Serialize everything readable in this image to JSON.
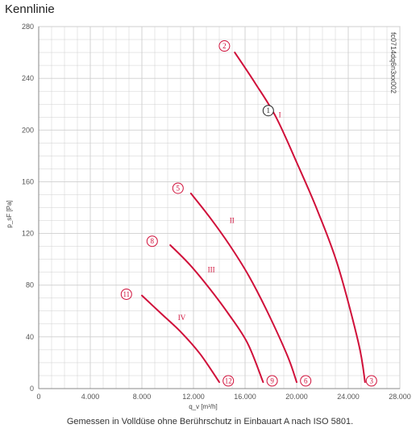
{
  "title": "Kennlinie",
  "caption": "Gemessen in Volldüse ohne Berührschutz in Einbauart A nach ISO 5801.",
  "code": "fc0714dq6n3xx002",
  "colors": {
    "curve": "#d0103a",
    "grid": "#cfcfcf",
    "marker": "#d0103a",
    "op_marker": "#222222"
  },
  "chart_data": {
    "type": "line",
    "xlabel": "q_v [m³/h]",
    "ylabel": "p_sF [Pa]",
    "xlim": [
      0,
      28000
    ],
    "ylim": [
      0,
      280
    ],
    "xticks": [
      "0",
      "4.000",
      "8.000",
      "12.000",
      "16.000",
      "20.000",
      "24.000",
      "28.000"
    ],
    "yticks": [
      "0",
      "40",
      "80",
      "120",
      "160",
      "200",
      "240",
      "280"
    ],
    "grid": true,
    "series": [
      {
        "name": "I",
        "x": [
          15200,
          16800,
          18400,
          20000,
          21600,
          23200,
          24800,
          25300
        ],
        "y": [
          260,
          236,
          210,
          175,
          138,
          95,
          35,
          5
        ]
      },
      {
        "name": "II",
        "x": [
          11800,
          13300,
          14800,
          16300,
          17800,
          19300,
          20000
        ],
        "y": [
          151,
          132,
          111,
          87,
          58,
          25,
          5
        ]
      },
      {
        "name": "III",
        "x": [
          10200,
          11700,
          13200,
          14700,
          16200,
          17400
        ],
        "y": [
          111,
          96,
          78,
          58,
          35,
          5
        ]
      },
      {
        "name": "IV",
        "x": [
          8000,
          9500,
          11000,
          12500,
          14000
        ],
        "y": [
          72,
          58,
          44,
          27,
          5
        ]
      }
    ],
    "markers": [
      {
        "label": "2",
        "x": 14400,
        "y": 265,
        "type": "point"
      },
      {
        "label": "5",
        "x": 10800,
        "y": 155,
        "type": "point"
      },
      {
        "label": "8",
        "x": 8800,
        "y": 114,
        "type": "point"
      },
      {
        "label": "11",
        "x": 6800,
        "y": 73,
        "type": "point"
      },
      {
        "label": "3",
        "x": 25800,
        "y": 6,
        "type": "point"
      },
      {
        "label": "6",
        "x": 20700,
        "y": 6,
        "type": "point"
      },
      {
        "label": "9",
        "x": 18100,
        "y": 6,
        "type": "point"
      },
      {
        "label": "12",
        "x": 14700,
        "y": 6,
        "type": "point"
      },
      {
        "label": "1",
        "x": 17800,
        "y": 215,
        "type": "operating"
      }
    ],
    "curve_labels": [
      {
        "label": "I",
        "x": 18600,
        "y": 210
      },
      {
        "label": "II",
        "x": 14800,
        "y": 128
      },
      {
        "label": "III",
        "x": 13100,
        "y": 90
      },
      {
        "label": "IV",
        "x": 10800,
        "y": 53
      }
    ]
  }
}
